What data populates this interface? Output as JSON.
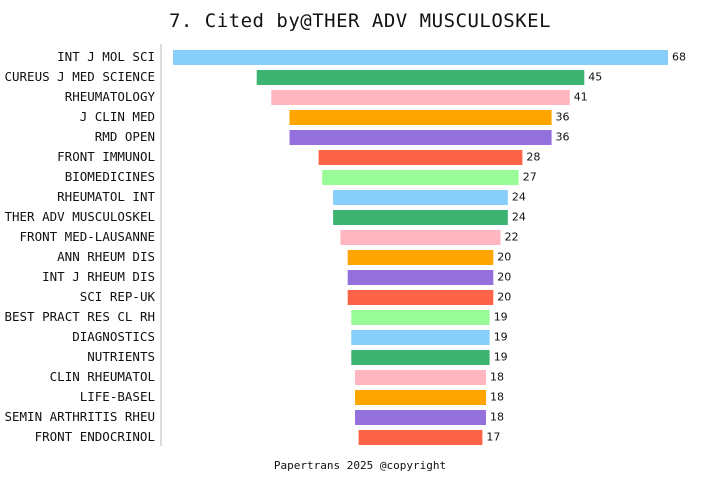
{
  "title": "7. Cited by@THER ADV MUSCULOSKEL",
  "footer": "Papertrans 2025 @copyright",
  "chart_data": {
    "type": "bar",
    "orientation": "horizontal-centered",
    "title": "7. Cited by@THER ADV MUSCULOSKEL",
    "categories": [
      "INT J MOL SCI",
      "CUREUS J MED SCIENCE",
      "RHEUMATOLOGY",
      "J CLIN MED",
      "RMD OPEN",
      "FRONT IMMUNOL",
      "BIOMEDICINES",
      "RHEUMATOL INT",
      "THER ADV MUSCULOSKEL",
      "FRONT MED-LAUSANNE",
      "ANN RHEUM DIS",
      "INT J RHEUM DIS",
      "SCI REP-UK",
      "BEST PRACT RES CL RH",
      "DIAGNOSTICS",
      "NUTRIENTS",
      "CLIN RHEUMATOL",
      "LIFE-BASEL",
      "SEMIN ARTHRITIS RHEU",
      "FRONT ENDOCRINOL"
    ],
    "values": [
      68,
      45,
      41,
      36,
      36,
      28,
      27,
      24,
      24,
      22,
      20,
      20,
      20,
      19,
      19,
      19,
      18,
      18,
      18,
      17
    ],
    "colors": [
      "#87CEFA",
      "#3CB371",
      "#FFB6C1",
      "#FFA500",
      "#9370DB",
      "#FF6347",
      "#98FB98",
      "#87CEFA",
      "#3CB371",
      "#FFB6C1",
      "#FFA500",
      "#9370DB",
      "#FF6347",
      "#98FB98",
      "#87CEFA",
      "#3CB371",
      "#FFB6C1",
      "#FFA500",
      "#9370DB",
      "#FF6347"
    ],
    "grid": false,
    "legend": "none"
  }
}
